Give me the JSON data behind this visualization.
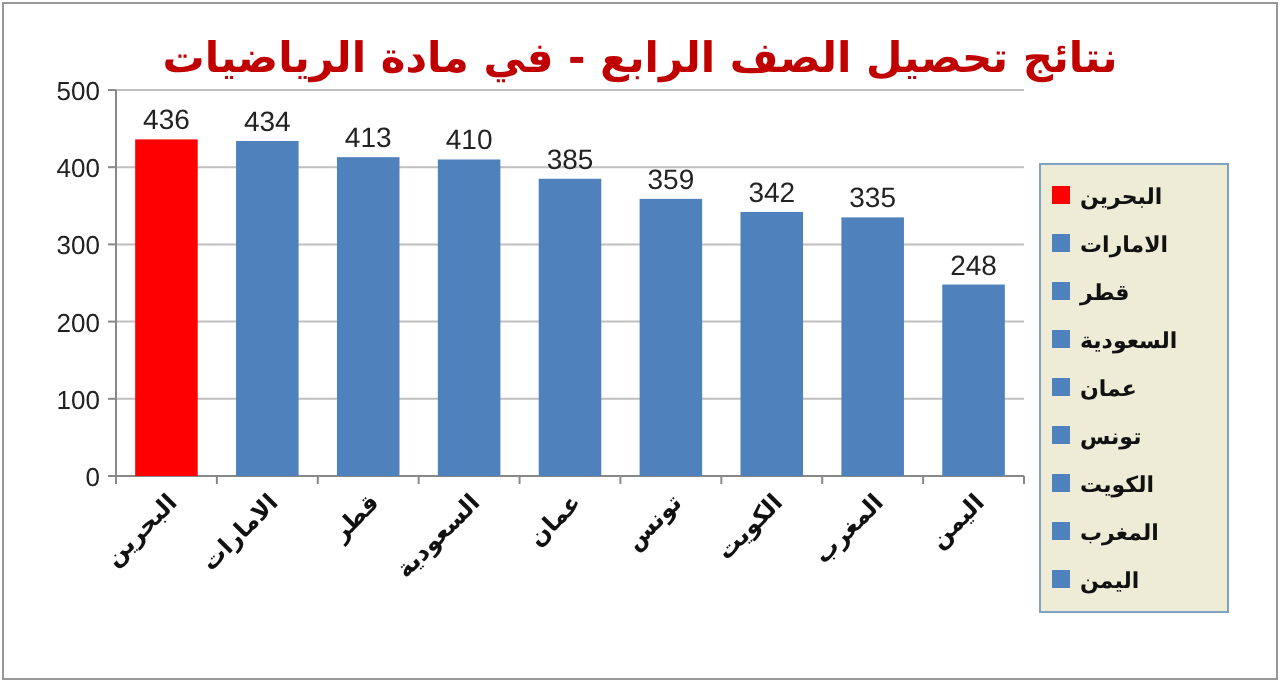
{
  "chart_data": {
    "type": "bar",
    "title": "نتائج تحصيل الصف الرابع - في مادة الرياضيات",
    "categories": [
      "البحرين",
      "الامارات",
      "قطر",
      "السعودية",
      "عمان",
      "تونس",
      "الكويت",
      "المغرب",
      "اليمن"
    ],
    "series": [
      {
        "name": "البحرين",
        "color": "#ff0000",
        "values": [
          436,
          null,
          null,
          null,
          null,
          null,
          null,
          null,
          null
        ]
      },
      {
        "name": "الامارات",
        "color": "#4f81bd",
        "values": [
          null,
          434,
          null,
          null,
          null,
          null,
          null,
          null,
          null
        ]
      },
      {
        "name": "قطر",
        "color": "#4f81bd",
        "values": [
          null,
          null,
          413,
          null,
          null,
          null,
          null,
          null,
          null
        ]
      },
      {
        "name": "السعودية",
        "color": "#4f81bd",
        "values": [
          null,
          null,
          null,
          410,
          null,
          null,
          null,
          null,
          null
        ]
      },
      {
        "name": "عمان",
        "color": "#4f81bd",
        "values": [
          null,
          null,
          null,
          null,
          385,
          null,
          null,
          null,
          null
        ]
      },
      {
        "name": "تونس",
        "color": "#4f81bd",
        "values": [
          null,
          null,
          null,
          null,
          null,
          359,
          null,
          null,
          null
        ]
      },
      {
        "name": "الكويت",
        "color": "#4f81bd",
        "values": [
          null,
          null,
          null,
          null,
          null,
          null,
          342,
          null,
          null
        ]
      },
      {
        "name": "المغرب",
        "color": "#4f81bd",
        "values": [
          null,
          null,
          null,
          null,
          null,
          null,
          null,
          335,
          null
        ]
      },
      {
        "name": "اليمن",
        "color": "#4f81bd",
        "values": [
          null,
          null,
          null,
          null,
          null,
          null,
          null,
          null,
          248
        ]
      }
    ],
    "stacked": true,
    "ylim": [
      0,
      500
    ],
    "yticks": [
      0,
      100,
      200,
      300,
      400,
      500
    ],
    "grid": "y",
    "legend": "right",
    "data_labels": true
  }
}
